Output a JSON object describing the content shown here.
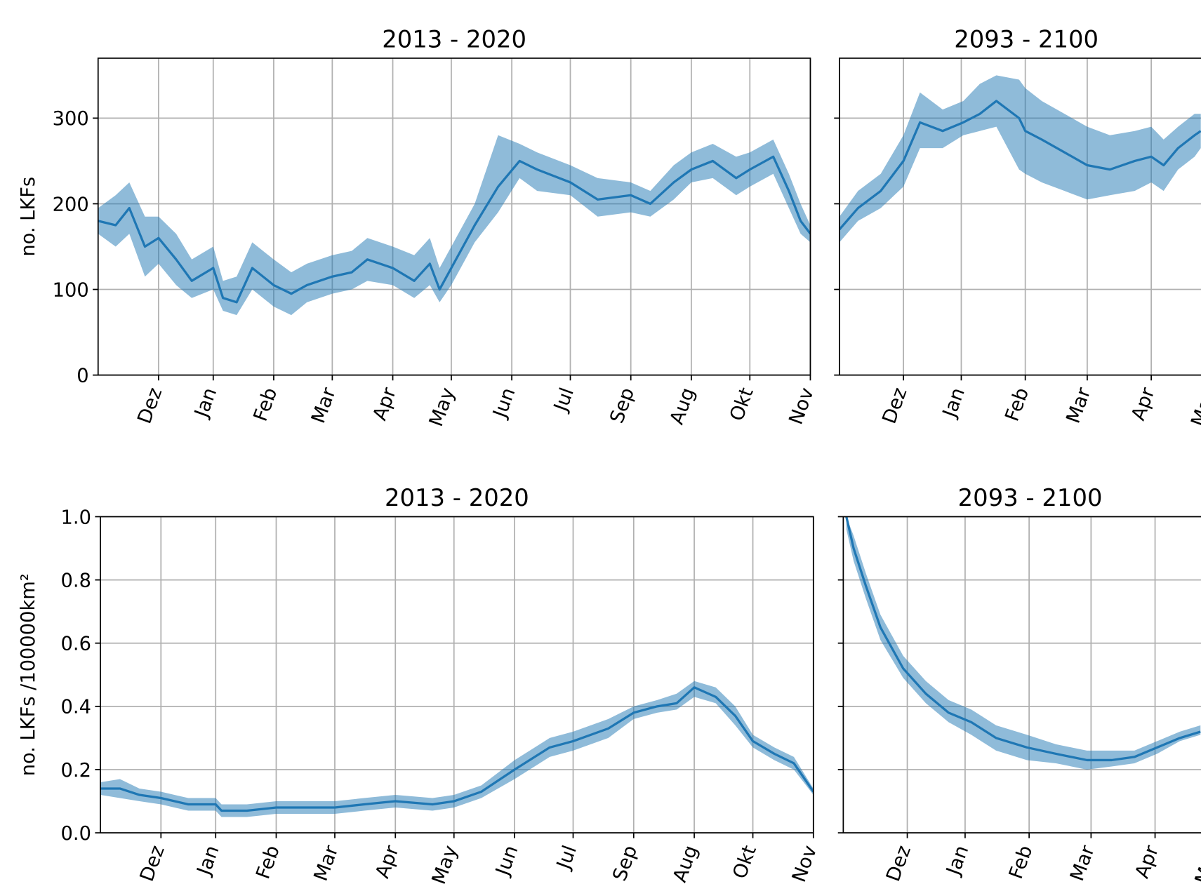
{
  "chart_data": [
    {
      "type": "line",
      "title": "2013 - 2020",
      "ylabel": "no. LKFs",
      "grid": true,
      "show_ytick_labels": true,
      "xlim": [
        0,
        365
      ],
      "ylim": [
        0,
        370
      ],
      "yticks": [
        0,
        100,
        200,
        300
      ],
      "xticks": [
        {
          "value": 31,
          "label": "Dez"
        },
        {
          "value": 59,
          "label": "Jan"
        },
        {
          "value": 90,
          "label": "Feb"
        },
        {
          "value": 120,
          "label": "Mar"
        },
        {
          "value": 151,
          "label": "Apr"
        },
        {
          "value": 181,
          "label": "May"
        },
        {
          "value": 212,
          "label": "Jun"
        },
        {
          "value": 242,
          "label": "Jul"
        },
        {
          "value": 273,
          "label": "Sep"
        },
        {
          "value": 304,
          "label": "Aug"
        },
        {
          "value": 334,
          "label": "Okt"
        },
        {
          "value": 365,
          "label": "Nov"
        }
      ],
      "x": [
        0,
        9,
        16,
        24,
        31,
        40,
        48,
        59,
        64,
        71,
        79,
        90,
        99,
        107,
        120,
        130,
        138,
        151,
        162,
        170,
        175,
        181,
        193,
        205,
        216,
        225,
        242,
        256,
        273,
        283,
        295,
        304,
        315,
        327,
        334,
        346,
        354,
        360,
        365
      ],
      "series": [
        {
          "color": "#1f77b4",
          "band_color": "#1f77b4",
          "values": [
            180,
            175,
            195,
            150,
            160,
            135,
            110,
            125,
            90,
            85,
            125,
            105,
            95,
            105,
            115,
            120,
            135,
            125,
            110,
            130,
            100,
            125,
            175,
            220,
            250,
            240,
            225,
            205,
            210,
            200,
            225,
            240,
            250,
            230,
            240,
            255,
            215,
            180,
            165
          ],
          "lower": [
            165,
            150,
            165,
            115,
            130,
            105,
            90,
            100,
            75,
            70,
            100,
            80,
            70,
            85,
            95,
            100,
            110,
            105,
            90,
            105,
            85,
            105,
            155,
            190,
            230,
            215,
            210,
            185,
            190,
            185,
            205,
            225,
            230,
            210,
            220,
            235,
            195,
            165,
            155
          ],
          "upper": [
            195,
            210,
            225,
            185,
            185,
            165,
            135,
            150,
            110,
            115,
            155,
            135,
            120,
            130,
            140,
            145,
            160,
            150,
            140,
            160,
            125,
            150,
            200,
            280,
            270,
            260,
            245,
            230,
            225,
            215,
            245,
            260,
            270,
            255,
            260,
            275,
            235,
            200,
            175
          ]
        }
      ]
    },
    {
      "type": "line",
      "title": "2093 - 2100",
      "grid": true,
      "show_ytick_labels": false,
      "xlim": [
        0,
        181
      ],
      "ylim": [
        0,
        370
      ],
      "yticks": [
        0,
        100,
        200,
        300
      ],
      "xticks": [
        {
          "value": 31,
          "label": "Dez"
        },
        {
          "value": 59,
          "label": "Jan"
        },
        {
          "value": 90,
          "label": "Feb"
        },
        {
          "value": 120,
          "label": "Mar"
        },
        {
          "value": 151,
          "label": "Apr"
        },
        {
          "value": 181,
          "label": "May"
        }
      ],
      "x": [
        0,
        9,
        20,
        31,
        39,
        50,
        60,
        68,
        76,
        87,
        90,
        98,
        109,
        120,
        131,
        143,
        151,
        157,
        164,
        172,
        175
      ],
      "series": [
        {
          "color": "#1f77b4",
          "band_color": "#1f77b4",
          "values": [
            170,
            195,
            215,
            250,
            295,
            285,
            295,
            305,
            320,
            300,
            285,
            275,
            260,
            245,
            240,
            250,
            255,
            245,
            265,
            280,
            285
          ],
          "lower": [
            155,
            180,
            195,
            220,
            265,
            265,
            280,
            285,
            290,
            240,
            235,
            225,
            215,
            205,
            210,
            215,
            225,
            215,
            240,
            255,
            265
          ],
          "upper": [
            185,
            215,
            235,
            280,
            330,
            310,
            320,
            340,
            350,
            345,
            335,
            320,
            305,
            290,
            280,
            285,
            290,
            275,
            290,
            305,
            305
          ]
        }
      ]
    },
    {
      "type": "line",
      "title": "2013 - 2020",
      "ylabel": "no. LKFs /100000km²",
      "grid": true,
      "show_ytick_labels": true,
      "xlim": [
        0,
        365
      ],
      "ylim": [
        0,
        1
      ],
      "yticks": [
        {
          "value": 0,
          "label": "0.0"
        },
        0.2,
        0.4,
        0.6,
        0.8,
        {
          "value": 1,
          "label": "1.0"
        }
      ],
      "xticks": [
        {
          "value": 31,
          "label": "Dez"
        },
        {
          "value": 59,
          "label": "Jan"
        },
        {
          "value": 90,
          "label": "Feb"
        },
        {
          "value": 120,
          "label": "Mar"
        },
        {
          "value": 151,
          "label": "Apr"
        },
        {
          "value": 181,
          "label": "May"
        },
        {
          "value": 212,
          "label": "Jun"
        },
        {
          "value": 242,
          "label": "Jul"
        },
        {
          "value": 273,
          "label": "Sep"
        },
        {
          "value": 304,
          "label": "Aug"
        },
        {
          "value": 334,
          "label": "Okt"
        },
        {
          "value": 365,
          "label": "Nov"
        }
      ],
      "x": [
        0,
        10,
        20,
        31,
        45,
        59,
        62,
        75,
        90,
        105,
        120,
        135,
        151,
        170,
        181,
        195,
        212,
        230,
        242,
        260,
        273,
        285,
        295,
        304,
        315,
        325,
        334,
        345,
        355,
        365
      ],
      "series": [
        {
          "color": "#1f77b4",
          "band_color": "#1f77b4",
          "values": [
            0.14,
            0.14,
            0.12,
            0.11,
            0.09,
            0.09,
            0.07,
            0.07,
            0.08,
            0.08,
            0.08,
            0.09,
            0.1,
            0.09,
            0.1,
            0.13,
            0.2,
            0.27,
            0.29,
            0.33,
            0.38,
            0.4,
            0.41,
            0.46,
            0.43,
            0.37,
            0.29,
            0.25,
            0.22,
            0.13
          ],
          "lower": [
            0.12,
            0.11,
            0.1,
            0.09,
            0.07,
            0.07,
            0.05,
            0.05,
            0.06,
            0.06,
            0.06,
            0.07,
            0.08,
            0.07,
            0.08,
            0.11,
            0.17,
            0.24,
            0.26,
            0.3,
            0.36,
            0.38,
            0.39,
            0.43,
            0.41,
            0.34,
            0.27,
            0.23,
            0.2,
            0.12
          ],
          "upper": [
            0.16,
            0.17,
            0.14,
            0.13,
            0.11,
            0.11,
            0.09,
            0.09,
            0.1,
            0.1,
            0.1,
            0.11,
            0.12,
            0.11,
            0.12,
            0.15,
            0.23,
            0.3,
            0.32,
            0.36,
            0.4,
            0.42,
            0.44,
            0.48,
            0.46,
            0.4,
            0.31,
            0.27,
            0.24,
            0.14
          ]
        }
      ]
    },
    {
      "type": "line",
      "title": "2093 - 2100",
      "grid": true,
      "show_ytick_labels": false,
      "xlim": [
        0,
        181
      ],
      "ylim": [
        0,
        1
      ],
      "yticks": [
        0,
        0.2,
        0.4,
        0.6,
        0.8,
        1
      ],
      "xticks": [
        {
          "value": 31,
          "label": "Dez"
        },
        {
          "value": 59,
          "label": "Jan"
        },
        {
          "value": 90,
          "label": "Feb"
        },
        {
          "value": 120,
          "label": "Mar"
        },
        {
          "value": 151,
          "label": "Apr"
        },
        {
          "value": 181,
          "label": "May"
        }
      ],
      "x": [
        1.5,
        5,
        11,
        18,
        29,
        40,
        51,
        62,
        74,
        89,
        103,
        118,
        130,
        141,
        152,
        163,
        173
      ],
      "series": [
        {
          "color": "#1f77b4",
          "band_color": "#1f77b4",
          "values": [
            1.0,
            0.9,
            0.78,
            0.65,
            0.52,
            0.44,
            0.38,
            0.35,
            0.3,
            0.27,
            0.25,
            0.23,
            0.23,
            0.24,
            0.27,
            0.3,
            0.32
          ],
          "lower": [
            0.96,
            0.86,
            0.74,
            0.61,
            0.49,
            0.41,
            0.35,
            0.31,
            0.26,
            0.23,
            0.22,
            0.2,
            0.21,
            0.22,
            0.25,
            0.29,
            0.31
          ],
          "upper": [
            1.0,
            0.94,
            0.82,
            0.69,
            0.56,
            0.48,
            0.42,
            0.39,
            0.34,
            0.31,
            0.28,
            0.26,
            0.26,
            0.26,
            0.29,
            0.32,
            0.34
          ]
        }
      ]
    }
  ]
}
